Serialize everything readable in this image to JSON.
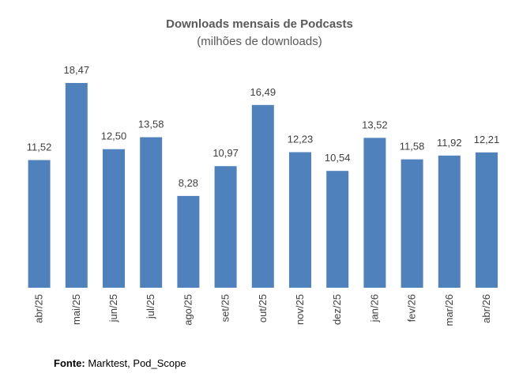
{
  "chart_data": {
    "type": "bar",
    "title": "Downloads mensais de Podcasts",
    "subtitle": "(milhões de downloads)",
    "categories": [
      "abr/25",
      "mai/25",
      "jun/25",
      "jul/25",
      "ago/25",
      "set/25",
      "out/25",
      "nov/25",
      "dez/25",
      "jan/26",
      "fev/26",
      "mar/26",
      "abr/26"
    ],
    "values": [
      11.52,
      18.47,
      12.5,
      13.58,
      8.28,
      10.97,
      16.49,
      12.23,
      10.54,
      13.52,
      11.58,
      11.92,
      12.21
    ],
    "data_labels": [
      "11,52",
      "18,47",
      "12,50",
      "13,58",
      "8,28",
      "10,97",
      "16,49",
      "12,23",
      "10,54",
      "13,52",
      "11,58",
      "11,92",
      "12,21"
    ],
    "xlabel": "",
    "ylabel": "",
    "ylim": [
      0,
      18.47
    ],
    "grid": false,
    "legend": "none",
    "bar_color": "#4F81BD"
  },
  "source": {
    "label": "Fonte:",
    "text": " Marktest, Pod_Scope"
  }
}
